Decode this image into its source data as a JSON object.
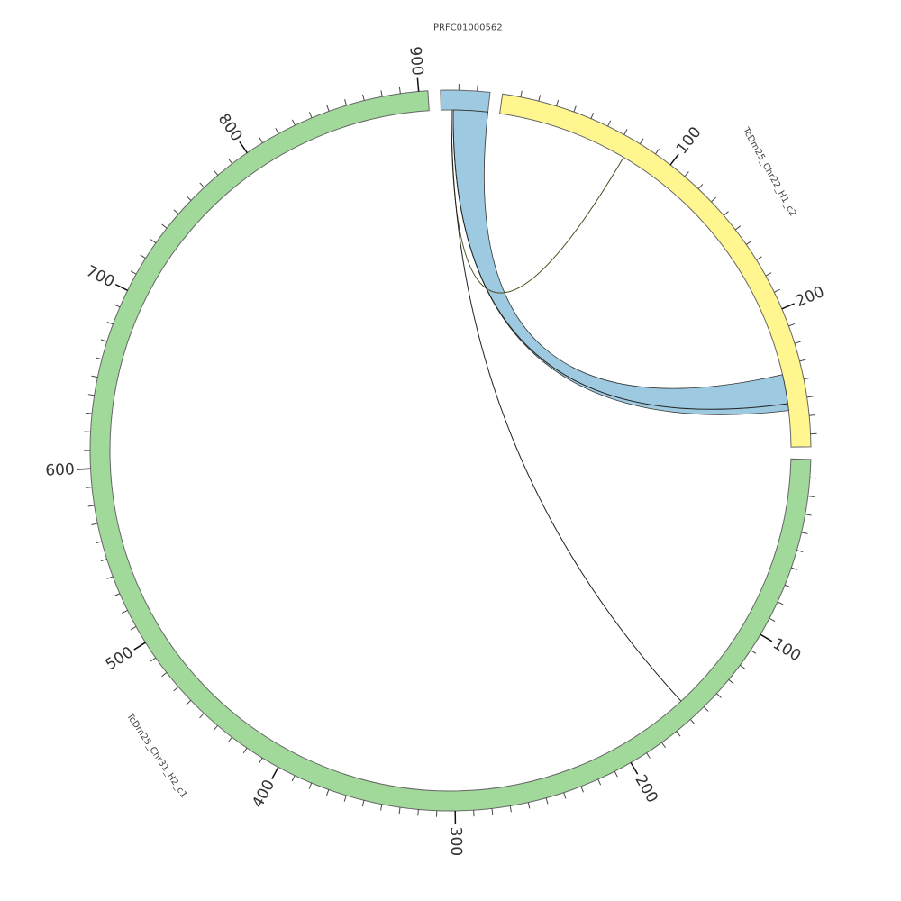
{
  "chart_data": {
    "type": "chord",
    "segments": [
      {
        "name": "PRFC01000562",
        "length": 27,
        "color": "#9ecae1",
        "ticks": [],
        "minor_tick_step": 10
      },
      {
        "name": "TcDm25_Chr22_H1_c2",
        "length": 277,
        "color": "#fff68f",
        "ticks": [
          100,
          200
        ],
        "minor_tick_step": 10
      },
      {
        "name": "TcDm25_Chr31_H2_c1",
        "length": 905,
        "color": "#a1d99b",
        "ticks": [
          100,
          200,
          300,
          400,
          500,
          600,
          700,
          800,
          900
        ],
        "minor_tick_step": 10
      }
    ],
    "links": [
      {
        "source": "PRFC01000562",
        "source_range": [
          7,
          27
        ],
        "target": "TcDm25_Chr22_H1_c2",
        "target_range": [
          235,
          256
        ],
        "color": "#9ecae1"
      },
      {
        "source": "PRFC01000562",
        "source_range": [
          6,
          6
        ],
        "target": "TcDm25_Chr22_H1_c2",
        "target_range": [
          76,
          76
        ],
        "color": "#4a4a1a"
      },
      {
        "source": "PRFC01000562",
        "source_range": [
          7,
          7
        ],
        "target": "TcDm25_Chr22_H1_c2",
        "target_range": [
          252,
          252
        ],
        "color": "#222222"
      },
      {
        "source": "PRFC01000562",
        "source_range": [
          6,
          6
        ],
        "target": "TcDm25_Chr31_H2_c1",
        "target_range": [
          157,
          157
        ],
        "color": "#222222"
      }
    ]
  }
}
